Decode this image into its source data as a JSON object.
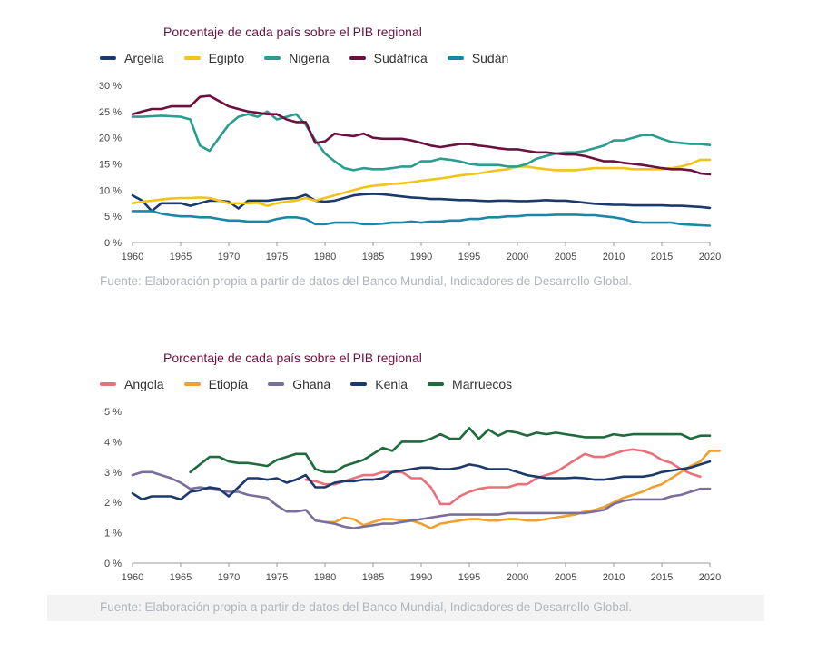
{
  "chart_data": [
    {
      "type": "line",
      "title": "Porcentaje de cada país sobre el PIB regional",
      "source": "Fuente: Elaboración propia a partir de datos del Banco Mundial, Indicadores de Desarrollo Global.",
      "ylim": [
        0,
        30
      ],
      "xlim": [
        1960,
        2020
      ],
      "yticks": [
        0,
        5,
        10,
        15,
        20,
        25,
        30
      ],
      "ytick_labels": [
        "0 %",
        "5 %",
        "10 %",
        "15 %",
        "20 %",
        "25 %",
        "30 %"
      ],
      "xticks": [
        1960,
        1965,
        1970,
        1975,
        1980,
        1985,
        1990,
        1995,
        2000,
        2005,
        2010,
        2015,
        2020
      ],
      "xtick_labels": [
        "1960",
        "1965",
        "1970",
        "1975",
        "1980",
        "1985",
        "1990",
        "1995",
        "2000",
        "2005",
        "2010",
        "2015",
        "2020"
      ],
      "series": [
        {
          "name": "Argelia",
          "color": "#1b3a6b",
          "x_start": 1960,
          "values": [
            9.0,
            8.0,
            6.0,
            7.5,
            7.5,
            7.5,
            7.0,
            7.5,
            8.0,
            8.0,
            7.8,
            6.5,
            8.0,
            8.0,
            8.0,
            8.2,
            8.4,
            8.5,
            9.1,
            8.0,
            7.8,
            8.0,
            8.5,
            9.0,
            9.2,
            9.3,
            9.2,
            9.0,
            8.8,
            8.6,
            8.5,
            8.3,
            8.3,
            8.2,
            8.1,
            8.1,
            8.0,
            7.9,
            8.0,
            8.0,
            7.9,
            7.9,
            8.0,
            8.1,
            8.0,
            8.0,
            7.8,
            7.6,
            7.4,
            7.3,
            7.2,
            7.2,
            7.1,
            7.1,
            7.1,
            7.1,
            7.0,
            7.0,
            6.9,
            6.8,
            6.6
          ]
        },
        {
          "name": "Egipto",
          "color": "#f0c419",
          "x_start": 1960,
          "values": [
            7.5,
            7.8,
            8.0,
            8.2,
            8.4,
            8.5,
            8.5,
            8.6,
            8.5,
            8.0,
            7.5,
            7.5,
            7.5,
            7.6,
            7.0,
            7.5,
            7.8,
            8.0,
            8.5,
            8.0,
            8.5,
            9.0,
            9.5,
            10.0,
            10.5,
            10.8,
            11.0,
            11.2,
            11.3,
            11.5,
            11.8,
            12.0,
            12.2,
            12.5,
            12.8,
            13.0,
            13.2,
            13.5,
            13.8,
            14.0,
            14.5,
            14.5,
            14.2,
            14.0,
            13.8,
            13.8,
            13.8,
            14.0,
            14.2,
            14.2,
            14.2,
            14.2,
            14.0,
            14.0,
            14.0,
            14.0,
            14.2,
            14.5,
            15.0,
            15.8,
            15.8
          ]
        },
        {
          "name": "Nigeria",
          "color": "#2a9d8f",
          "x_start": 1960,
          "values": [
            24.0,
            24.0,
            24.1,
            24.2,
            24.1,
            24.0,
            23.5,
            18.5,
            17.5,
            20.0,
            22.5,
            24.0,
            24.5,
            24.0,
            25.0,
            23.5,
            24.0,
            24.5,
            22.5,
            19.5,
            17.0,
            15.5,
            14.2,
            13.8,
            14.2,
            14.0,
            14.0,
            14.2,
            14.5,
            14.5,
            15.5,
            15.5,
            16.0,
            15.8,
            15.5,
            15.0,
            14.8,
            14.8,
            14.8,
            14.5,
            14.5,
            15.0,
            16.0,
            16.5,
            17.0,
            17.2,
            17.2,
            17.5,
            18.0,
            18.5,
            19.5,
            19.5,
            20.0,
            20.5,
            20.5,
            19.8,
            19.2,
            19.0,
            18.8,
            18.8,
            18.6
          ]
        },
        {
          "name": "Sudáfrica",
          "color": "#6b1140",
          "x_start": 1960,
          "values": [
            24.5,
            25.0,
            25.5,
            25.5,
            26.0,
            26.0,
            26.0,
            27.8,
            28.0,
            27.0,
            26.0,
            25.5,
            25.0,
            24.8,
            24.5,
            24.5,
            23.5,
            23.0,
            23.0,
            19.0,
            19.3,
            20.8,
            20.5,
            20.3,
            20.8,
            20.0,
            19.8,
            19.8,
            19.8,
            19.5,
            19.0,
            18.5,
            18.2,
            18.5,
            18.8,
            18.8,
            18.5,
            18.3,
            18.0,
            17.8,
            17.8,
            17.5,
            17.2,
            17.2,
            17.0,
            16.8,
            16.8,
            16.5,
            16.0,
            15.5,
            15.5,
            15.2,
            15.0,
            14.8,
            14.5,
            14.2,
            14.0,
            14.0,
            13.8,
            13.2,
            13.0
          ]
        },
        {
          "name": "Sudán",
          "color": "#1a86a8",
          "x_start": 1960,
          "values": [
            6.0,
            6.0,
            6.0,
            5.5,
            5.2,
            5.0,
            5.0,
            4.8,
            4.8,
            4.5,
            4.2,
            4.2,
            4.0,
            4.0,
            4.0,
            4.5,
            4.8,
            4.8,
            4.5,
            3.5,
            3.5,
            3.8,
            3.8,
            3.8,
            3.5,
            3.5,
            3.6,
            3.8,
            3.8,
            4.0,
            3.8,
            4.0,
            4.0,
            4.2,
            4.2,
            4.5,
            4.5,
            4.8,
            4.8,
            5.0,
            5.0,
            5.2,
            5.2,
            5.2,
            5.3,
            5.3,
            5.3,
            5.2,
            5.2,
            5.0,
            4.8,
            4.5,
            4.0,
            3.8,
            3.8,
            3.8,
            3.8,
            3.5,
            3.4,
            3.3,
            3.2
          ]
        }
      ]
    },
    {
      "type": "line",
      "title": "Porcentaje de cada país sobre el PIB regional",
      "source": "Fuente: Elaboración propia a partir de datos del Banco Mundial, Indicadores de Desarrollo Global.",
      "ylim": [
        0,
        5
      ],
      "xlim": [
        1960,
        2020
      ],
      "yticks": [
        0,
        1,
        2,
        3,
        4,
        5
      ],
      "ytick_labels": [
        "0 %",
        "1 %",
        "2 %",
        "3 %",
        "4 %",
        "5 %"
      ],
      "xticks": [
        1960,
        1965,
        1970,
        1975,
        1980,
        1985,
        1990,
        1995,
        2000,
        2005,
        2010,
        2015,
        2020
      ],
      "xtick_labels": [
        "1960",
        "1965",
        "1970",
        "1975",
        "1980",
        "1985",
        "1990",
        "1995",
        "2000",
        "2005",
        "2010",
        "2015",
        "2020"
      ],
      "series": [
        {
          "name": "Angola",
          "color": "#e8707a",
          "x_start": 1978,
          "values": [
            2.75,
            2.7,
            2.6,
            2.6,
            2.7,
            2.8,
            2.9,
            2.9,
            3.0,
            3.0,
            3.0,
            2.8,
            2.8,
            2.5,
            1.95,
            1.95,
            2.2,
            2.35,
            2.45,
            2.5,
            2.5,
            2.5,
            2.6,
            2.6,
            2.8,
            2.9,
            3.0,
            3.2,
            3.4,
            3.6,
            3.5,
            3.5,
            3.6,
            3.7,
            3.75,
            3.7,
            3.6,
            3.4,
            3.3,
            3.1,
            2.95,
            2.85
          ]
        },
        {
          "name": "Etiopía",
          "color": "#f0a030",
          "x_start": 1980,
          "values": [
            1.35,
            1.35,
            1.5,
            1.45,
            1.25,
            1.35,
            1.45,
            1.45,
            1.4,
            1.4,
            1.3,
            1.15,
            1.3,
            1.35,
            1.4,
            1.45,
            1.45,
            1.4,
            1.4,
            1.45,
            1.45,
            1.4,
            1.4,
            1.45,
            1.5,
            1.55,
            1.6,
            1.7,
            1.75,
            1.85,
            2.0,
            2.15,
            2.25,
            2.35,
            2.5,
            2.6,
            2.8,
            3.0,
            3.2,
            3.35,
            3.7,
            3.7
          ]
        },
        {
          "name": "Ghana",
          "color": "#7a6f9b",
          "x_start": 1960,
          "values": [
            2.9,
            3.0,
            3.0,
            2.9,
            2.8,
            2.65,
            2.45,
            2.5,
            2.45,
            2.4,
            2.35,
            2.35,
            2.25,
            2.2,
            2.15,
            1.9,
            1.7,
            1.7,
            1.75,
            1.4,
            1.35,
            1.3,
            1.2,
            1.15,
            1.2,
            1.25,
            1.3,
            1.3,
            1.35,
            1.4,
            1.45,
            1.5,
            1.55,
            1.6,
            1.6,
            1.6,
            1.6,
            1.6,
            1.6,
            1.65,
            1.65,
            1.65,
            1.65,
            1.65,
            1.65,
            1.65,
            1.65,
            1.65,
            1.7,
            1.75,
            1.95,
            2.05,
            2.1,
            2.1,
            2.1,
            2.1,
            2.2,
            2.25,
            2.35,
            2.45,
            2.45
          ]
        },
        {
          "name": "Kenia",
          "color": "#1b3a6b",
          "x_start": 1960,
          "values": [
            2.3,
            2.1,
            2.2,
            2.2,
            2.2,
            2.1,
            2.35,
            2.4,
            2.5,
            2.45,
            2.2,
            2.5,
            2.8,
            2.8,
            2.75,
            2.8,
            2.65,
            2.75,
            2.9,
            2.5,
            2.5,
            2.65,
            2.7,
            2.7,
            2.75,
            2.75,
            2.8,
            3.0,
            3.05,
            3.1,
            3.15,
            3.15,
            3.1,
            3.1,
            3.15,
            3.25,
            3.2,
            3.1,
            3.1,
            3.1,
            3.0,
            2.9,
            2.85,
            2.8,
            2.8,
            2.8,
            2.82,
            2.8,
            2.75,
            2.75,
            2.8,
            2.85,
            2.85,
            2.85,
            2.9,
            3.0,
            3.05,
            3.1,
            3.15,
            3.25,
            3.35
          ]
        },
        {
          "name": "Marruecos",
          "color": "#1e6b3c",
          "x_start": 1966,
          "values": [
            3.0,
            3.25,
            3.5,
            3.5,
            3.35,
            3.3,
            3.3,
            3.25,
            3.2,
            3.4,
            3.5,
            3.6,
            3.6,
            3.1,
            3.0,
            3.0,
            3.2,
            3.3,
            3.4,
            3.6,
            3.8,
            3.7,
            4.0,
            4.0,
            4.0,
            4.1,
            4.25,
            4.1,
            4.1,
            4.45,
            4.1,
            4.4,
            4.2,
            4.35,
            4.3,
            4.2,
            4.3,
            4.25,
            4.3,
            4.25,
            4.2,
            4.15,
            4.15,
            4.15,
            4.25,
            4.2,
            4.25,
            4.25,
            4.25,
            4.25,
            4.25,
            4.25,
            4.1,
            4.2,
            4.2
          ]
        }
      ]
    }
  ]
}
